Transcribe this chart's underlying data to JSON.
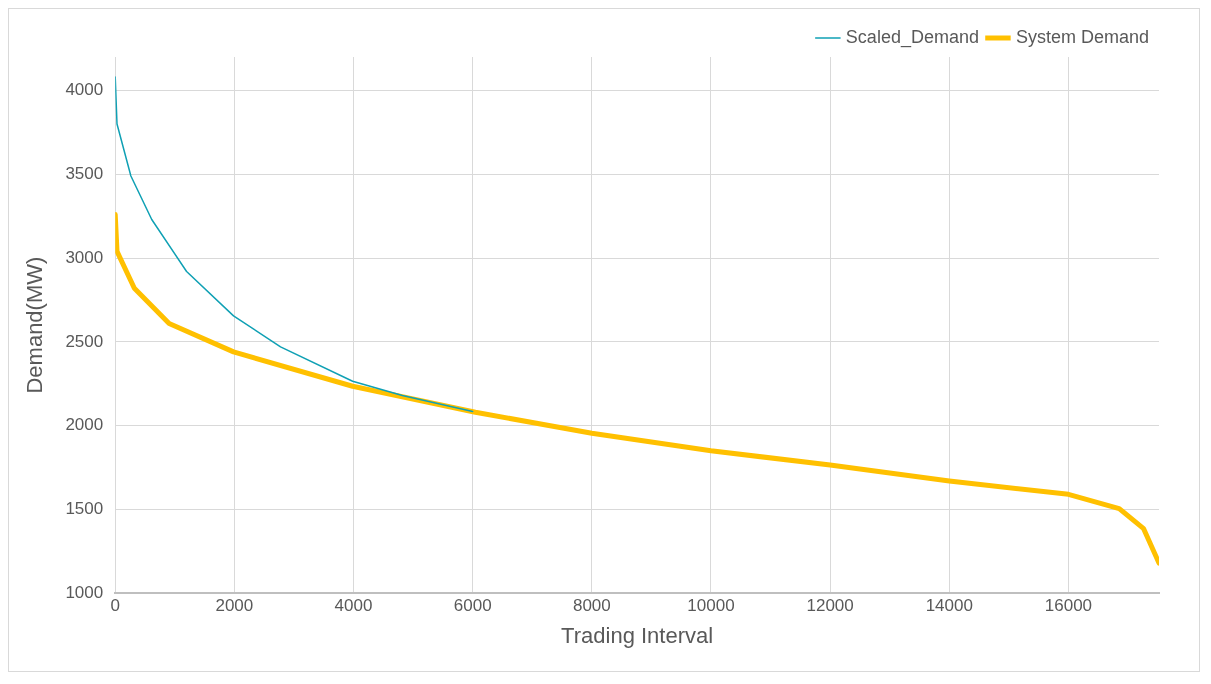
{
  "chart_data": {
    "type": "line",
    "xlabel": "Trading Interval",
    "ylabel": "Demand(MW)",
    "xlim": [
      0,
      17520
    ],
    "xticks": [
      0,
      2000,
      4000,
      6000,
      8000,
      10000,
      12000,
      14000,
      16000
    ],
    "ylim": [
      1000,
      4200
    ],
    "yticks": [
      1000,
      1500,
      2000,
      2500,
      3000,
      3500,
      4000
    ],
    "grid": true,
    "legend": "top right",
    "marker": "none",
    "line_style": "solid",
    "series": [
      {
        "name": "Scaled_Demand",
        "color": "#0fa0b4",
        "x": [
          0,
          30,
          263,
          613,
          1198,
          1986,
          2775,
          3985,
          4820,
          6000
        ],
        "values": [
          4080,
          3800,
          3490,
          3230,
          2920,
          2655,
          2470,
          2265,
          2180,
          2085
        ]
      },
      {
        "name": "System Demand",
        "color": "#ffc000",
        "x": [
          0,
          30,
          321,
          905,
          1986,
          3985,
          6046,
          8000,
          10000,
          12000,
          14000,
          16000,
          16852,
          17262,
          17520
        ],
        "values": [
          3260,
          3040,
          2820,
          2610,
          2440,
          2235,
          2080,
          1955,
          1850,
          1765,
          1670,
          1590,
          1505,
          1385,
          1180
        ]
      }
    ]
  }
}
